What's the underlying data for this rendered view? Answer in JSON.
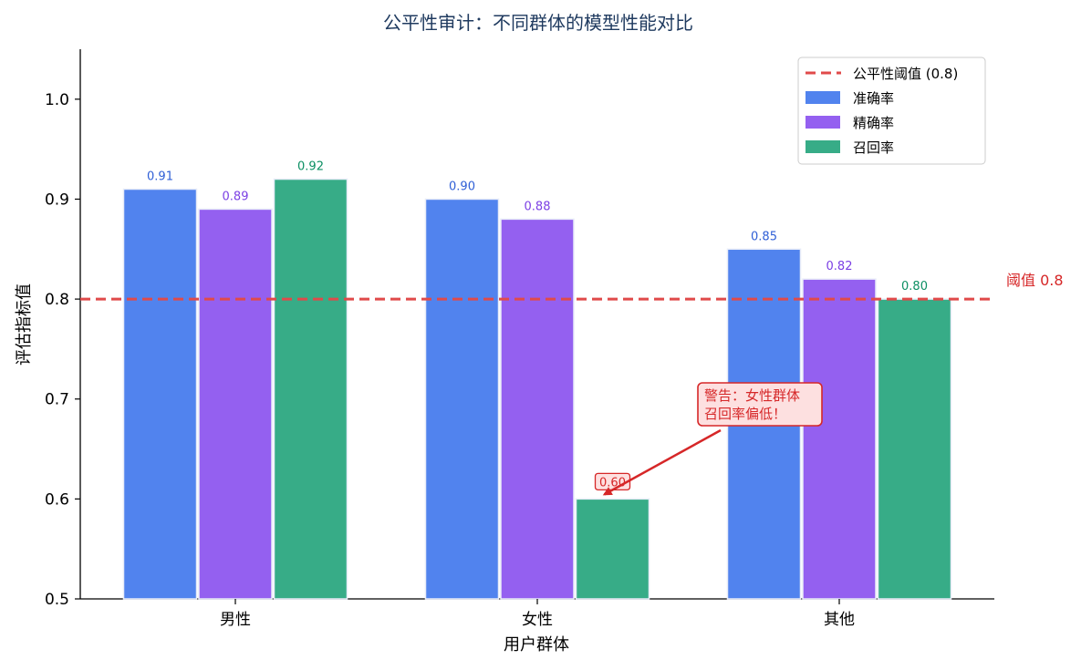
{
  "chart_data": {
    "type": "bar",
    "title": "公平性审计：不同群体的模型性能对比",
    "xlabel": "用户群体",
    "ylabel": "评估指标值",
    "categories": [
      "男性",
      "女性",
      "其他"
    ],
    "series": [
      {
        "name": "准确率",
        "values": [
          0.91,
          0.9,
          0.85
        ],
        "color": "#5183ee",
        "label_color": "#2f5fd6"
      },
      {
        "name": "精确率",
        "values": [
          0.89,
          0.88,
          0.82
        ],
        "color": "#9460f0",
        "label_color": "#7b3fe4"
      },
      {
        "name": "召回率",
        "values": [
          0.92,
          0.6,
          0.8
        ],
        "color": "#37ac87",
        "label_color": "#0c8f63"
      }
    ],
    "value_labels": [
      [
        "0.91",
        "0.90",
        "0.85"
      ],
      [
        "0.89",
        "0.88",
        "0.82"
      ],
      [
        "0.92",
        "0.60",
        "0.80"
      ]
    ],
    "ylim": [
      0.5,
      1.05
    ],
    "yticks": [
      0.5,
      0.6,
      0.7,
      0.8,
      0.9,
      1.0
    ],
    "ytick_labels": [
      "0.5",
      "0.6",
      "0.7",
      "0.8",
      "0.9",
      "1.0"
    ],
    "threshold": {
      "value": 0.8,
      "legend_label": "公平性阈值 (0.8)",
      "side_label": "阈值 0.8",
      "color": "#e04a4a"
    },
    "annotation": {
      "lines": [
        "警告：女性群体",
        "召回率偏低！"
      ],
      "target_category": "女性",
      "target_series": "召回率",
      "target_value": 0.6,
      "color": "#d62728",
      "fill": "#fde0e0"
    },
    "legend_position": "top-right",
    "grid": false
  }
}
